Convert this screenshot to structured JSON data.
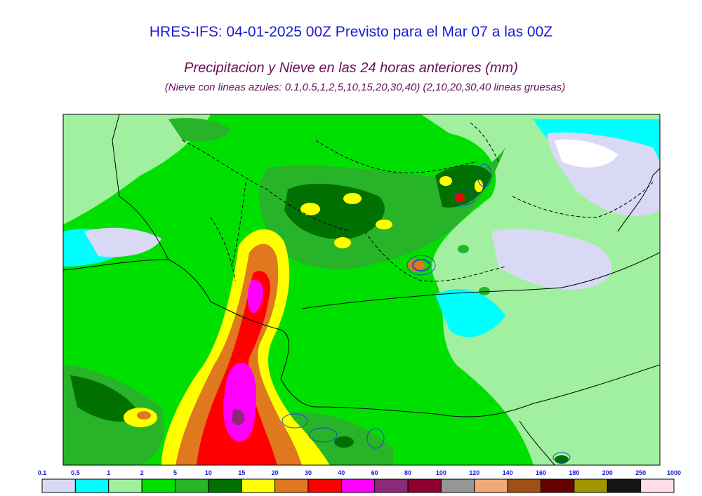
{
  "title": "HRES-IFS: 04-01-2025 00Z Previsto para el Mar 07 a las 00Z",
  "subtitle": "Precipitacion y Nieve en las 24 horas anteriores (mm)",
  "note": "(Nieve con lineas azules: 0.1,0.5,1,2,5,10,15,20,30,40)  (2,10,20,30,40 lineas gruesas)",
  "chart_data": {
    "type": "heatmap",
    "title": "Precipitacion y Nieve en las 24 horas anteriores (mm)",
    "units": "mm",
    "legend_placement": "bottom",
    "grid": false,
    "colorbar": {
      "levels": [
        "0.1",
        "0.5",
        "1",
        "2",
        "5",
        "10",
        "15",
        "20",
        "30",
        "40",
        "60",
        "80",
        "100",
        "120",
        "140",
        "160",
        "180",
        "200",
        "250",
        "1000"
      ],
      "colors": [
        "#d9d9f5",
        "#00ffff",
        "#a0f0a0",
        "#00e000",
        "#28b428",
        "#007000",
        "#ffff00",
        "#e07820",
        "#ff0000",
        "#ff00ff",
        "#8c2878",
        "#8c0030",
        "#969696",
        "#f0aa78",
        "#a05014",
        "#640000",
        "#a09600",
        "#141414",
        "#ffdce6"
      ]
    },
    "snow_contours_mm": [
      0.1,
      0.5,
      1,
      2,
      5,
      10,
      15,
      20,
      30,
      40
    ],
    "snow_thick_contours_mm": [
      2,
      10,
      20,
      30,
      40
    ]
  }
}
